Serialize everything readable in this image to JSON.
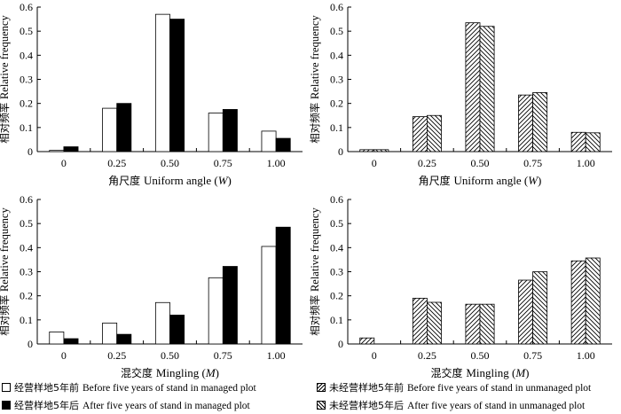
{
  "chart_data": [
    {
      "type": "bar",
      "categories": [
        "0",
        "0.25",
        "0.50",
        "0.75",
        "1.00"
      ],
      "series": [
        {
          "name": "经营样地5年前 Before five years of stand in managed plot",
          "style": "white",
          "values": [
            0.005,
            0.18,
            0.57,
            0.16,
            0.085
          ]
        },
        {
          "name": "经营样地5年后 After five years of stand in managed plot",
          "style": "black",
          "values": [
            0.02,
            0.2,
            0.55,
            0.175,
            0.055
          ]
        }
      ],
      "xlabel": "角尺度  Uniform angle (W)",
      "xlabel_parts": {
        "cn": "角尺度",
        "en": "Uniform angle (",
        "var": "W",
        "end": ")"
      },
      "ylabel": "相对频率  Relative frequency",
      "ylabel_parts": {
        "cn": "相对频率",
        "en": "Relative frequency"
      },
      "ylim": [
        0,
        0.6
      ],
      "yticks": [
        "0",
        "0.1",
        "0.2",
        "0.3",
        "0.4",
        "0.5",
        "0.6"
      ]
    },
    {
      "type": "bar",
      "categories": [
        "0",
        "0.25",
        "0.50",
        "0.75",
        "1.00"
      ],
      "series": [
        {
          "name": "未经营样地5年前 Before five years of stand in unmanaged plot",
          "style": "hatchL",
          "values": [
            0.008,
            0.145,
            0.535,
            0.235,
            0.08
          ]
        },
        {
          "name": "未经营样地5年后 After five years of stand in unmanaged plot",
          "style": "hatchR",
          "values": [
            0.008,
            0.15,
            0.52,
            0.245,
            0.078
          ]
        }
      ],
      "xlabel": "角尺度  Uniform angle (W)",
      "xlabel_parts": {
        "cn": "角尺度",
        "en": "Uniform angle (",
        "var": "W",
        "end": ")"
      },
      "ylabel": "相对频率  Relative frequency",
      "ylabel_parts": {
        "cn": "相对频率",
        "en": "Relative frequency"
      },
      "ylim": [
        0,
        0.6
      ],
      "yticks": [
        "0",
        "0.1",
        "0.2",
        "0.3",
        "0.4",
        "0.5",
        "0.6"
      ]
    },
    {
      "type": "bar",
      "categories": [
        "0",
        "0.25",
        "0.50",
        "0.75",
        "1.00"
      ],
      "series": [
        {
          "name": "经营样地5年前 Before five years of stand in managed plot",
          "style": "white",
          "values": [
            0.05,
            0.087,
            0.172,
            0.275,
            0.405
          ]
        },
        {
          "name": "经营样地5年后 After five years of stand in managed plot",
          "style": "black",
          "values": [
            0.022,
            0.04,
            0.12,
            0.322,
            0.485
          ]
        }
      ],
      "xlabel": "混交度  Mingling (M)",
      "xlabel_parts": {
        "cn": "混交度",
        "en": "Mingling (",
        "var": "M",
        "end": ")"
      },
      "ylabel": "相对频率  Relative frequency",
      "ylabel_parts": {
        "cn": "相对频率",
        "en": "Relative frequency"
      },
      "ylim": [
        0,
        0.6
      ],
      "yticks": [
        "0",
        "0.1",
        "0.2",
        "0.3",
        "0.4",
        "0.5",
        "0.6"
      ]
    },
    {
      "type": "bar",
      "categories": [
        "0",
        "0.25",
        "0.50",
        "0.75",
        "1.00"
      ],
      "series": [
        {
          "name": "未经营样地5年前 Before five years of stand in unmanaged plot",
          "style": "hatchL",
          "values": [
            0.025,
            0.19,
            0.165,
            0.265,
            0.345
          ]
        },
        {
          "name": "未经营样地5年后 After five years of stand in unmanaged plot",
          "style": "hatchR",
          "values": [
            0,
            0.173,
            0.165,
            0.3,
            0.357
          ]
        }
      ],
      "xlabel": "混交度  Mingling (M)",
      "xlabel_parts": {
        "cn": "混交度",
        "en": "Mingling (",
        "var": "M",
        "end": ")"
      },
      "ylabel": "相对频率  Relative frequency",
      "ylabel_parts": {
        "cn": "相对频率",
        "en": "Relative frequency"
      },
      "ylim": [
        0,
        0.6
      ],
      "yticks": [
        "0",
        "0.1",
        "0.2",
        "0.3",
        "0.4",
        "0.5",
        "0.6"
      ]
    }
  ],
  "legend": {
    "managed_before": {
      "cn": "经营样地5年前",
      "en": "Before five years of stand in managed plot"
    },
    "managed_after": {
      "cn": "经营样地5年后",
      "en": "After five years of stand in managed plot"
    },
    "unmanaged_before": {
      "cn": "未经营样地5年前",
      "en": "Before five years of stand in unmanaged plot"
    },
    "unmanaged_after": {
      "cn": "未经营样地5年后",
      "en": "After five years of stand in unmanaged plot"
    }
  }
}
